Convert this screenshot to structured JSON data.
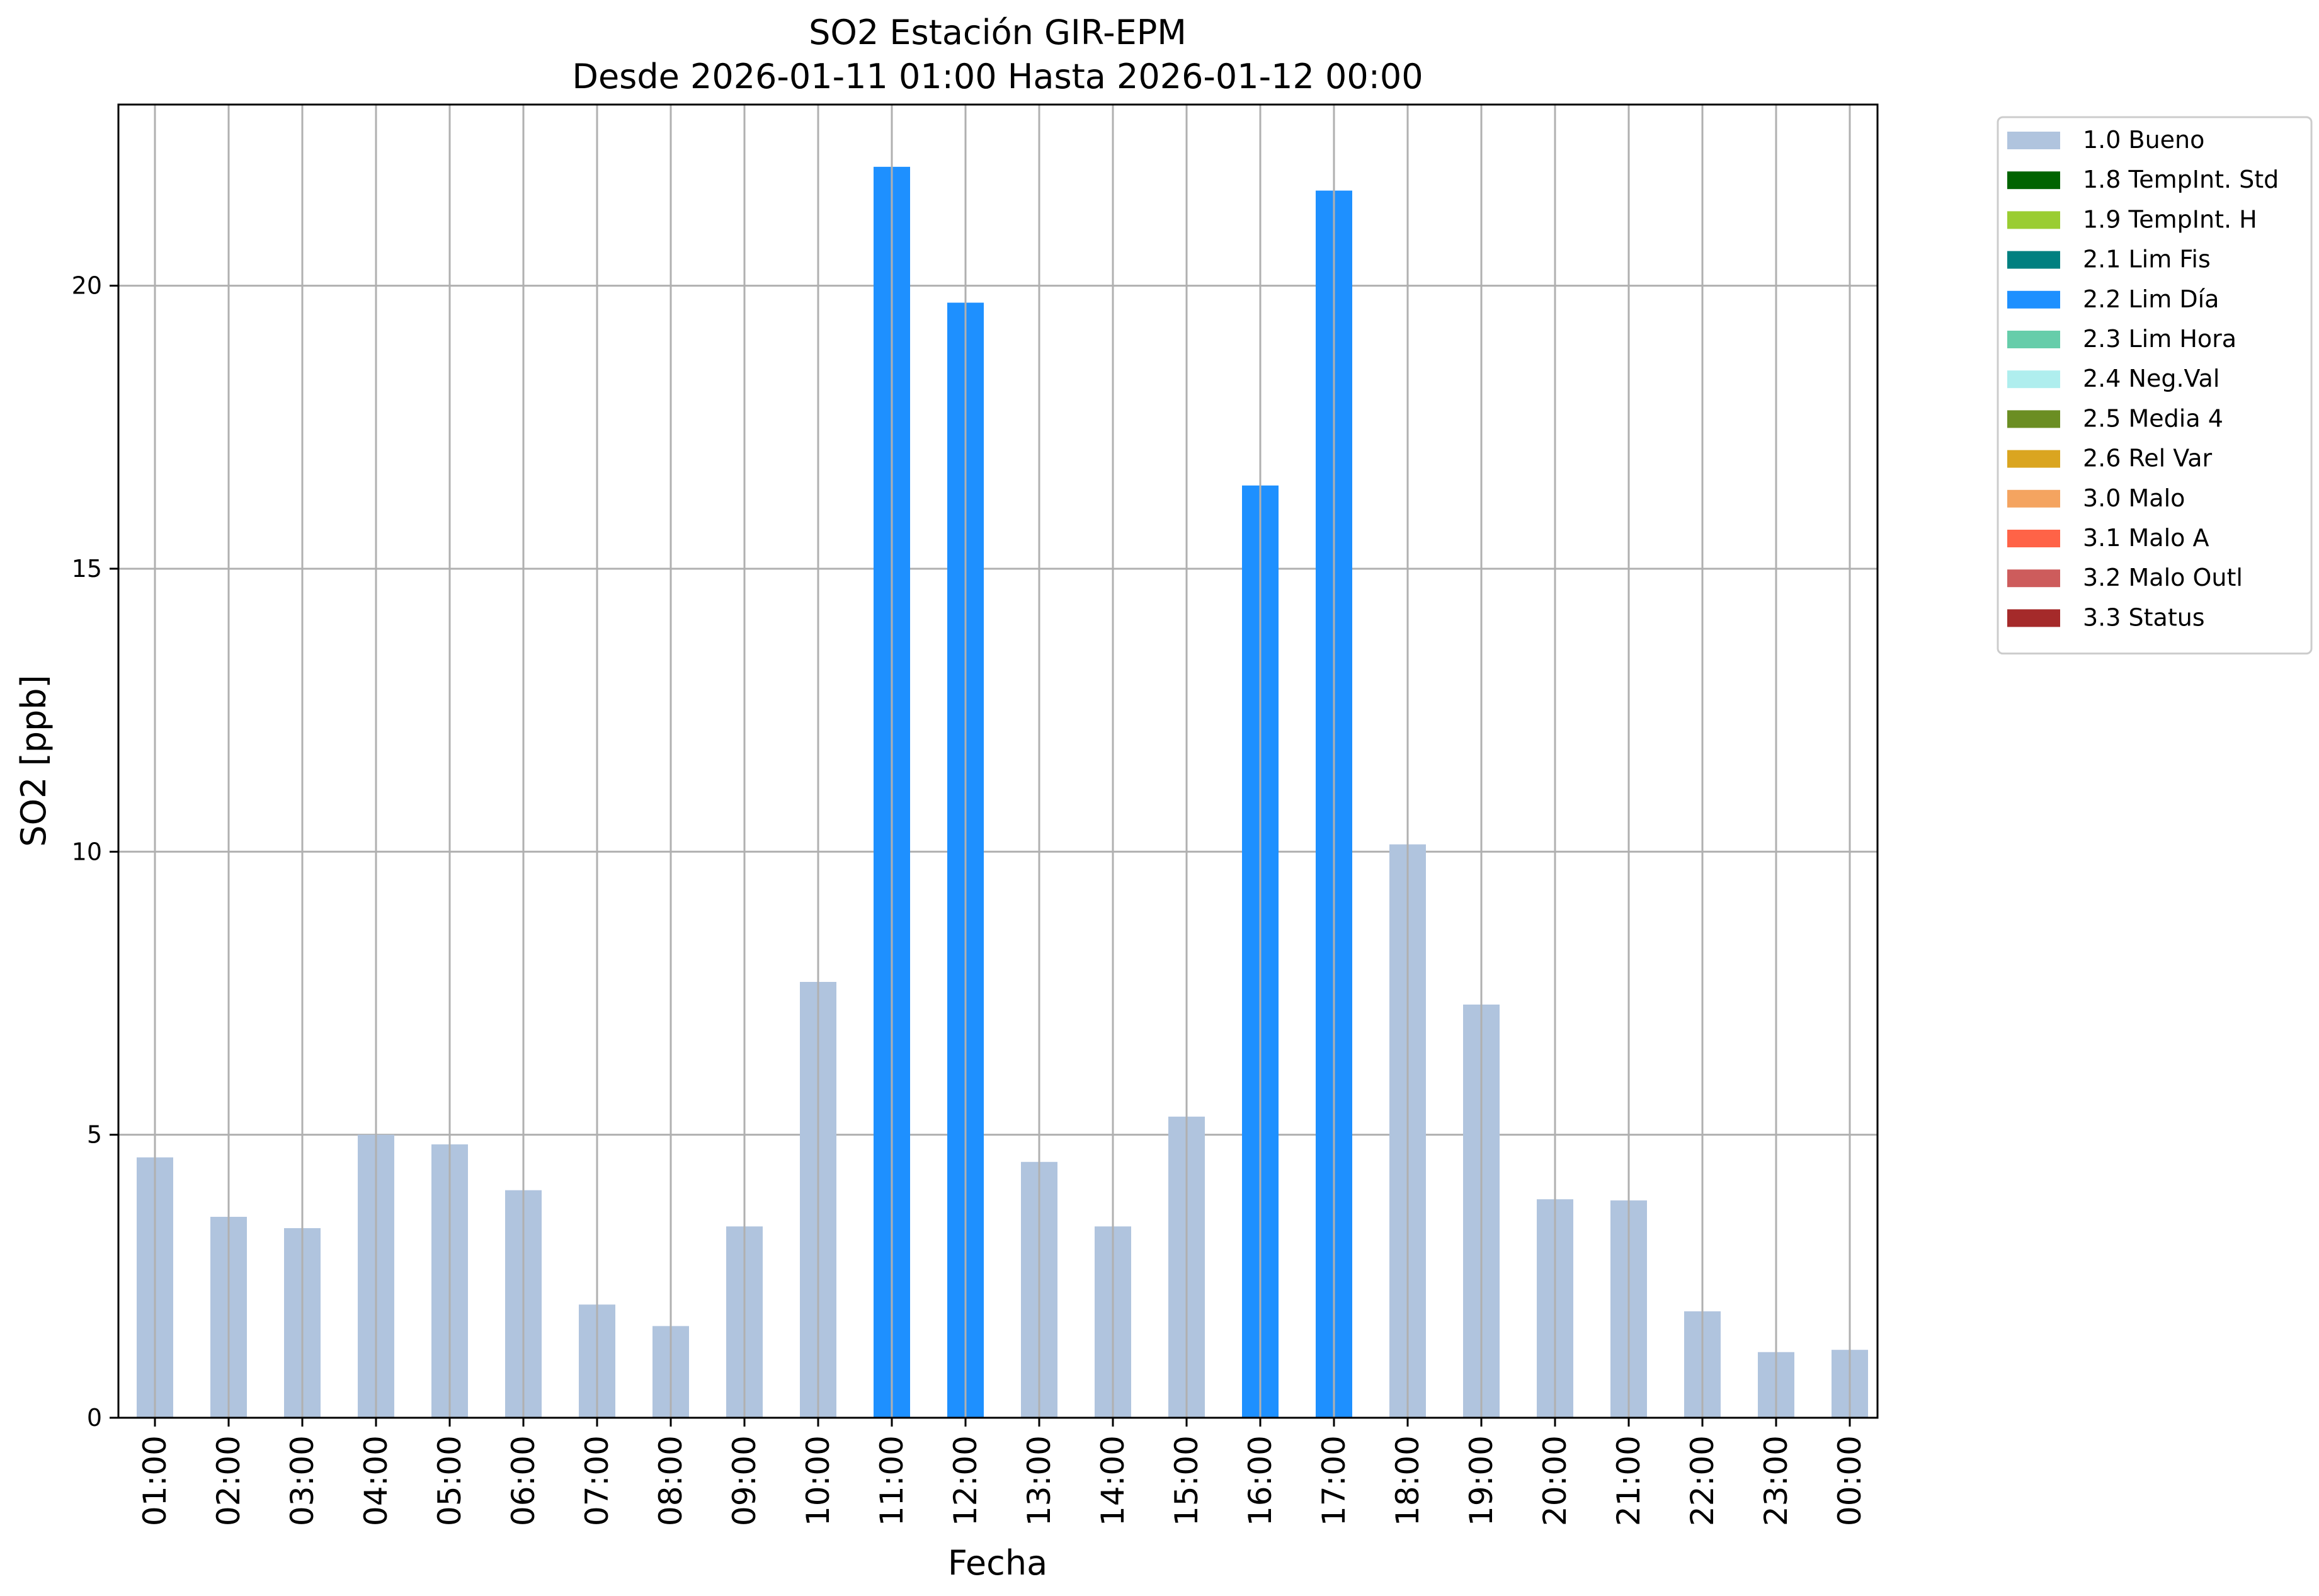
{
  "chart_data": {
    "type": "bar",
    "title": "SO2 Estación GIR-EPM",
    "subtitle": "Desde 2026-01-11 01:00 Hasta 2026-01-12 00:00",
    "xlabel": "Fecha",
    "ylabel": "SO2 [ppb]",
    "ylim": [
      0,
      23.2
    ],
    "yticks": [
      0,
      5,
      10,
      15,
      20
    ],
    "grid": true,
    "legend_position": "outside-top-right",
    "categories": [
      "01:00",
      "02:00",
      "03:00",
      "04:00",
      "05:00",
      "06:00",
      "07:00",
      "08:00",
      "09:00",
      "10:00",
      "11:00",
      "12:00",
      "13:00",
      "14:00",
      "15:00",
      "16:00",
      "17:00",
      "18:00",
      "19:00",
      "20:00",
      "21:00",
      "22:00",
      "23:00",
      "00:00"
    ],
    "values": [
      4.6,
      3.55,
      3.35,
      5.0,
      4.83,
      4.02,
      2.0,
      1.62,
      3.38,
      7.7,
      22.1,
      19.7,
      4.52,
      3.38,
      5.32,
      16.47,
      21.68,
      10.13,
      7.3,
      3.86,
      3.84,
      1.88,
      1.16,
      1.2
    ],
    "flags": [
      "1.0 Bueno",
      "1.0 Bueno",
      "1.0 Bueno",
      "1.0 Bueno",
      "1.0 Bueno",
      "1.0 Bueno",
      "1.0 Bueno",
      "1.0 Bueno",
      "1.0 Bueno",
      "1.0 Bueno",
      "2.2 Lim Día",
      "2.2 Lim Día",
      "1.0 Bueno",
      "1.0 Bueno",
      "1.0 Bueno",
      "2.2 Lim Día",
      "2.2 Lim Día",
      "1.0 Bueno",
      "1.0 Bueno",
      "1.0 Bueno",
      "1.0 Bueno",
      "1.0 Bueno",
      "1.0 Bueno",
      "1.0 Bueno"
    ],
    "legend": [
      {
        "label": "1.0 Bueno",
        "color": "#b0c4de"
      },
      {
        "label": "1.8 TempInt. Std",
        "color": "#006400"
      },
      {
        "label": "1.9 TempInt. H",
        "color": "#9acd32"
      },
      {
        "label": "2.1 Lim Fis",
        "color": "#008080"
      },
      {
        "label": "2.2 Lim Día",
        "color": "#1e90ff"
      },
      {
        "label": "2.3 Lim Hora",
        "color": "#66cdaa"
      },
      {
        "label": "2.4 Neg.Val",
        "color": "#afeeee"
      },
      {
        "label": "2.5 Media 4",
        "color": "#6b8e23"
      },
      {
        "label": "2.6 Rel Var",
        "color": "#daa520"
      },
      {
        "label": "3.0 Malo",
        "color": "#f4a460"
      },
      {
        "label": "3.1 Malo A",
        "color": "#ff6347"
      },
      {
        "label": "3.2 Malo Outl",
        "color": "#cd5c5c"
      },
      {
        "label": "3.3 Status",
        "color": "#a52a2a"
      }
    ]
  }
}
